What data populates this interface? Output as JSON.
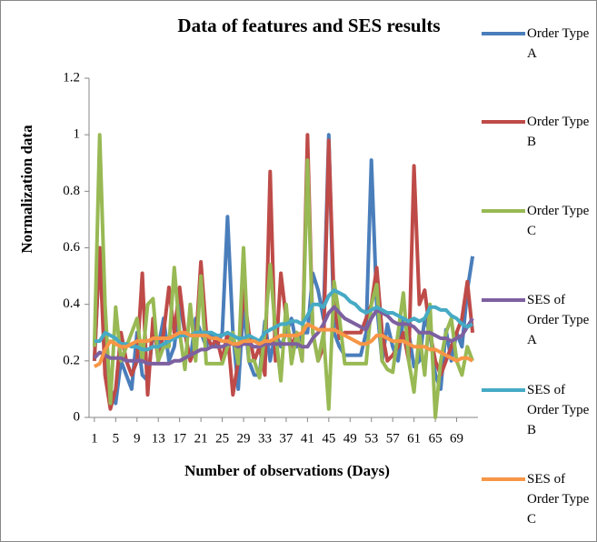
{
  "chart_data": {
    "type": "line",
    "title": "Data of features and SES results",
    "x_label": "Number of observations (Days)",
    "y_label": "Normalization data",
    "x": [
      1,
      2,
      3,
      4,
      5,
      6,
      7,
      8,
      9,
      10,
      11,
      12,
      13,
      14,
      15,
      16,
      17,
      18,
      19,
      20,
      21,
      22,
      23,
      24,
      25,
      26,
      27,
      28,
      29,
      30,
      31,
      32,
      33,
      34,
      35,
      36,
      37,
      38,
      39,
      40,
      41,
      42,
      43,
      44,
      45,
      46,
      47,
      48,
      49,
      50,
      51,
      52,
      53,
      54,
      55,
      56,
      57,
      58,
      59,
      60,
      61,
      62,
      63,
      64,
      65,
      66,
      67,
      68,
      69,
      70,
      71,
      72
    ],
    "xlim": [
      0,
      73
    ],
    "xticks": [
      1,
      5,
      9,
      13,
      17,
      21,
      25,
      29,
      33,
      37,
      41,
      45,
      49,
      53,
      57,
      61,
      65,
      69
    ],
    "ylim": [
      0,
      1.2
    ],
    "yticks": [
      0,
      0.2,
      0.4,
      0.6,
      0.8,
      1,
      1.2
    ],
    "grid": false,
    "legend": "right",
    "series": [
      {
        "name": "Order Type A",
        "color": "#4a7ebb",
        "values": [
          0.2,
          0.6,
          0.25,
          0.1,
          0.05,
          0.2,
          0.15,
          0.1,
          0.3,
          0.15,
          0.13,
          0.3,
          0.25,
          0.35,
          0.2,
          0.25,
          0.4,
          0.3,
          0.2,
          0.35,
          0.3,
          0.25,
          0.3,
          0.25,
          0.3,
          0.71,
          0.3,
          0.1,
          0.4,
          0.2,
          0.15,
          0.15,
          0.34,
          0.2,
          0.3,
          0.25,
          0.3,
          0.35,
          0.25,
          0.3,
          0.3,
          0.51,
          0.45,
          0.35,
          1.0,
          0.3,
          0.25,
          0.22,
          0.22,
          0.22,
          0.22,
          0.3,
          0.91,
          0.4,
          0.2,
          0.33,
          0.25,
          0.2,
          0.35,
          0.3,
          0.18,
          0.2,
          0.35,
          0.3,
          0.15,
          0.1,
          0.31,
          0.2,
          0.3,
          0.25,
          0.45,
          0.57
        ]
      },
      {
        "name": "Order Type B",
        "color": "#be4b48",
        "values": [
          0.2,
          0.6,
          0.15,
          0.03,
          0.1,
          0.3,
          0.2,
          0.15,
          0.2,
          0.51,
          0.08,
          0.35,
          0.2,
          0.3,
          0.46,
          0.3,
          0.46,
          0.3,
          0.2,
          0.25,
          0.55,
          0.3,
          0.25,
          0.28,
          0.2,
          0.3,
          0.08,
          0.2,
          0.45,
          0.3,
          0.2,
          0.25,
          0.15,
          0.87,
          0.2,
          0.51,
          0.35,
          0.25,
          0.3,
          0.2,
          1.0,
          0.3,
          0.2,
          0.25,
          0.98,
          0.4,
          0.28,
          0.3,
          0.3,
          0.3,
          0.3,
          0.35,
          0.4,
          0.53,
          0.3,
          0.2,
          0.22,
          0.25,
          0.3,
          0.2,
          0.89,
          0.4,
          0.45,
          0.3,
          0.2,
          0.15,
          0.2,
          0.25,
          0.3,
          0.35,
          0.48,
          0.3
        ]
      },
      {
        "name": "Order Type C",
        "color": "#98b954",
        "values": [
          0.25,
          1.0,
          0.4,
          0.05,
          0.39,
          0.2,
          0.25,
          0.3,
          0.35,
          0.2,
          0.4,
          0.42,
          0.2,
          0.25,
          0.25,
          0.53,
          0.3,
          0.17,
          0.4,
          0.2,
          0.5,
          0.19,
          0.19,
          0.19,
          0.19,
          0.25,
          0.3,
          0.19,
          0.6,
          0.2,
          0.2,
          0.14,
          0.3,
          0.54,
          0.3,
          0.13,
          0.4,
          0.19,
          0.3,
          0.2,
          0.91,
          0.3,
          0.2,
          0.3,
          0.03,
          0.48,
          0.35,
          0.19,
          0.19,
          0.19,
          0.19,
          0.19,
          0.4,
          0.47,
          0.2,
          0.17,
          0.16,
          0.3,
          0.44,
          0.2,
          0.09,
          0.3,
          0.15,
          0.4,
          0.0,
          0.2,
          0.3,
          0.35,
          0.2,
          0.15,
          0.25,
          0.2
        ]
      },
      {
        "name": "SES of Order Type A",
        "color": "#7d60a0",
        "values": [
          0.21,
          0.23,
          0.22,
          0.21,
          0.21,
          0.21,
          0.2,
          0.2,
          0.2,
          0.2,
          0.19,
          0.19,
          0.19,
          0.19,
          0.19,
          0.2,
          0.2,
          0.21,
          0.22,
          0.23,
          0.24,
          0.24,
          0.25,
          0.25,
          0.25,
          0.26,
          0.26,
          0.25,
          0.26,
          0.26,
          0.25,
          0.25,
          0.26,
          0.26,
          0.26,
          0.26,
          0.26,
          0.26,
          0.26,
          0.25,
          0.25,
          0.28,
          0.3,
          0.33,
          0.37,
          0.39,
          0.37,
          0.35,
          0.34,
          0.33,
          0.32,
          0.31,
          0.35,
          0.38,
          0.37,
          0.36,
          0.34,
          0.33,
          0.33,
          0.33,
          0.32,
          0.3,
          0.3,
          0.3,
          0.29,
          0.28,
          0.28,
          0.27,
          0.28,
          0.29,
          0.32,
          0.35
        ]
      },
      {
        "name": "SES of Order Type B",
        "color": "#46aac5",
        "values": [
          0.27,
          0.27,
          0.3,
          0.29,
          0.28,
          0.26,
          0.26,
          0.25,
          0.25,
          0.24,
          0.24,
          0.25,
          0.25,
          0.26,
          0.27,
          0.28,
          0.29,
          0.29,
          0.29,
          0.3,
          0.3,
          0.3,
          0.3,
          0.29,
          0.29,
          0.3,
          0.29,
          0.28,
          0.28,
          0.29,
          0.28,
          0.27,
          0.3,
          0.31,
          0.32,
          0.33,
          0.33,
          0.34,
          0.34,
          0.33,
          0.36,
          0.4,
          0.4,
          0.39,
          0.43,
          0.45,
          0.44,
          0.43,
          0.41,
          0.4,
          0.38,
          0.37,
          0.38,
          0.39,
          0.38,
          0.37,
          0.37,
          0.36,
          0.35,
          0.34,
          0.35,
          0.34,
          0.35,
          0.39,
          0.39,
          0.38,
          0.38,
          0.36,
          0.35,
          0.33,
          0.32,
          0.33
        ]
      },
      {
        "name": "SES of Order Type C",
        "color": "#f79646",
        "values": [
          0.18,
          0.19,
          0.24,
          0.27,
          0.26,
          0.25,
          0.25,
          0.26,
          0.27,
          0.27,
          0.27,
          0.28,
          0.28,
          0.28,
          0.28,
          0.29,
          0.3,
          0.3,
          0.29,
          0.29,
          0.29,
          0.29,
          0.28,
          0.28,
          0.27,
          0.27,
          0.26,
          0.26,
          0.27,
          0.27,
          0.27,
          0.26,
          0.27,
          0.27,
          0.28,
          0.29,
          0.29,
          0.29,
          0.29,
          0.3,
          0.33,
          0.32,
          0.31,
          0.31,
          0.31,
          0.31,
          0.3,
          0.29,
          0.28,
          0.27,
          0.26,
          0.26,
          0.27,
          0.29,
          0.29,
          0.28,
          0.27,
          0.27,
          0.27,
          0.26,
          0.25,
          0.25,
          0.25,
          0.24,
          0.24,
          0.23,
          0.22,
          0.21,
          0.2,
          0.21,
          0.21,
          0.2
        ]
      }
    ]
  }
}
